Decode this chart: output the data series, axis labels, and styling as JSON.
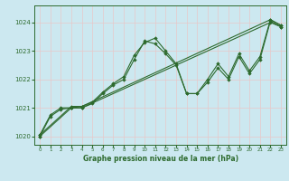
{
  "title": "Graphe pression niveau de la mer (hPa)",
  "background_color": "#cce8f0",
  "grid_color": "#e8c8c8",
  "line_color": "#2d6a2d",
  "marker_color": "#2d6a2d",
  "xlim": [
    -0.5,
    23.5
  ],
  "ylim": [
    1019.7,
    1024.6
  ],
  "yticks": [
    1020,
    1021,
    1022,
    1023,
    1024
  ],
  "xticks": [
    0,
    1,
    2,
    3,
    4,
    5,
    6,
    7,
    8,
    9,
    10,
    11,
    12,
    13,
    14,
    15,
    16,
    17,
    18,
    19,
    20,
    21,
    22,
    23
  ],
  "series": [
    {
      "x": [
        0,
        1,
        2,
        3,
        4,
        5,
        6,
        7,
        8,
        9,
        10,
        11,
        12,
        13,
        14,
        15,
        16,
        17,
        18,
        19,
        20,
        21,
        22,
        23
      ],
      "y": [
        1020.05,
        1020.75,
        1021.0,
        1021.0,
        1021.05,
        1021.2,
        1021.55,
        1021.85,
        1022.1,
        1022.85,
        1023.3,
        1023.45,
        1023.0,
        1022.55,
        1021.5,
        1021.5,
        1022.0,
        1022.55,
        1022.1,
        1022.9,
        1022.3,
        1022.8,
        1024.1,
        1023.9
      ]
    },
    {
      "x": [
        0,
        1,
        2,
        3,
        4,
        5,
        6,
        7,
        8,
        9,
        10,
        11,
        12,
        13,
        14,
        15,
        16,
        17,
        18,
        19,
        20,
        21,
        22,
        23
      ],
      "y": [
        1020.0,
        1020.7,
        1020.95,
        1021.0,
        1021.0,
        1021.15,
        1021.5,
        1021.8,
        1022.0,
        1022.7,
        1023.35,
        1023.25,
        1022.9,
        1022.5,
        1021.5,
        1021.5,
        1021.9,
        1022.4,
        1022.0,
        1022.8,
        1022.2,
        1022.7,
        1024.05,
        1023.85
      ]
    },
    {
      "x": [
        0,
        3,
        4,
        22,
        23
      ],
      "y": [
        1020.0,
        1021.0,
        1021.0,
        1024.0,
        1023.85
      ]
    },
    {
      "x": [
        0,
        3,
        4,
        22,
        23
      ],
      "y": [
        1020.05,
        1021.05,
        1021.05,
        1024.1,
        1023.9
      ]
    }
  ]
}
